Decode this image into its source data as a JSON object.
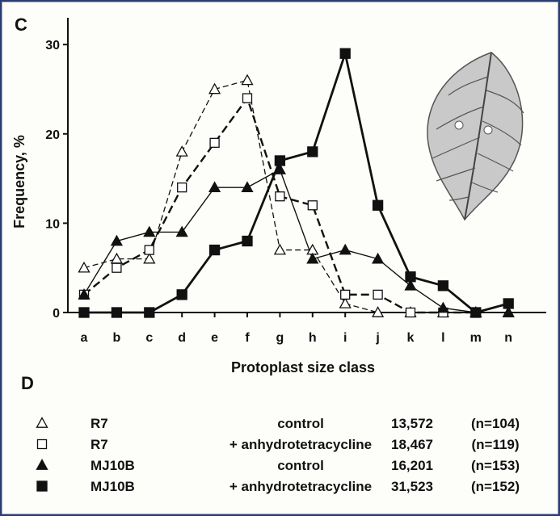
{
  "panel_c_label": "C",
  "panel_d_label": "D",
  "leaf_icon": "leaf-illustration",
  "chart_data": {
    "type": "line",
    "xlabel": "Protoplast size class",
    "ylabel": "Frequency, %",
    "categories": [
      "a",
      "b",
      "c",
      "d",
      "e",
      "f",
      "g",
      "h",
      "i",
      "j",
      "k",
      "l",
      "m",
      "n"
    ],
    "ylim": [
      0,
      33
    ],
    "yticks": [
      0,
      10,
      20,
      30
    ],
    "grid": false,
    "series": [
      {
        "marker": "open-triangle",
        "line_style": "thin-dashed",
        "values": [
          5,
          6,
          6,
          18,
          25,
          26,
          7,
          7,
          1,
          0,
          0,
          0,
          0,
          0
        ]
      },
      {
        "marker": "open-square",
        "line_style": "thick-dashed",
        "values": [
          2,
          5,
          7,
          14,
          19,
          24,
          13,
          12,
          2,
          2,
          0,
          0,
          0,
          1
        ]
      },
      {
        "marker": "filled-triangle",
        "line_style": "thin-solid",
        "values": [
          2,
          8,
          9,
          9,
          14,
          14,
          16,
          6,
          7,
          6,
          3,
          0.5,
          0,
          0
        ]
      },
      {
        "marker": "filled-square",
        "line_style": "thick-solid",
        "values": [
          0,
          0,
          0,
          2,
          7,
          8,
          17,
          18,
          29,
          12,
          4,
          3,
          0,
          1
        ]
      }
    ]
  },
  "legend": [
    {
      "marker": "open-triangle",
      "strain": "R7",
      "treatment": "control",
      "value": "13,572",
      "n": "(n=104)"
    },
    {
      "marker": "open-square",
      "strain": "R7",
      "treatment": "+ anhydrotetracycline",
      "value": "18,467",
      "n": "(n=119)"
    },
    {
      "marker": "filled-triangle",
      "strain": "MJ10B",
      "treatment": "control",
      "value": "16,201",
      "n": "(n=153)"
    },
    {
      "marker": "filled-square",
      "strain": "MJ10B",
      "treatment": "+ anhydrotetracycline",
      "value": "31,523",
      "n": "(n=152)"
    }
  ]
}
